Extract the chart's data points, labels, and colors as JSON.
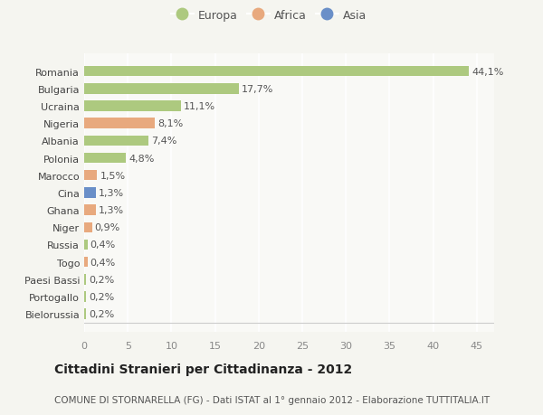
{
  "countries": [
    "Romania",
    "Bulgaria",
    "Ucraina",
    "Nigeria",
    "Albania",
    "Polonia",
    "Marocco",
    "Cina",
    "Ghana",
    "Niger",
    "Russia",
    "Togo",
    "Paesi Bassi",
    "Portogallo",
    "Bielorussia"
  ],
  "values": [
    44.1,
    17.7,
    11.1,
    8.1,
    7.4,
    4.8,
    1.5,
    1.3,
    1.3,
    0.9,
    0.4,
    0.4,
    0.2,
    0.2,
    0.2
  ],
  "labels": [
    "44,1%",
    "17,7%",
    "11,1%",
    "8,1%",
    "7,4%",
    "4,8%",
    "1,5%",
    "1,3%",
    "1,3%",
    "0,9%",
    "0,4%",
    "0,4%",
    "0,2%",
    "0,2%",
    "0,2%"
  ],
  "continents": [
    "Europa",
    "Europa",
    "Europa",
    "Africa",
    "Europa",
    "Europa",
    "Africa",
    "Asia",
    "Africa",
    "Africa",
    "Europa",
    "Africa",
    "Europa",
    "Europa",
    "Europa"
  ],
  "colors": {
    "Europa": "#adc97f",
    "Africa": "#e8a97e",
    "Asia": "#6a8fc8"
  },
  "xlim": [
    0,
    47
  ],
  "xticks": [
    0,
    5,
    10,
    15,
    20,
    25,
    30,
    35,
    40,
    45
  ],
  "title": "Cittadini Stranieri per Cittadinanza - 2012",
  "subtitle": "COMUNE DI STORNARELLA (FG) - Dati ISTAT al 1° gennaio 2012 - Elaborazione TUTTITALIA.IT",
  "background_color": "#f5f5f0",
  "plot_bg_color": "#f9f9f6",
  "grid_color": "#ffffff",
  "bar_height": 0.6,
  "label_fontsize": 8,
  "tick_fontsize": 8,
  "title_fontsize": 10,
  "subtitle_fontsize": 7.5
}
